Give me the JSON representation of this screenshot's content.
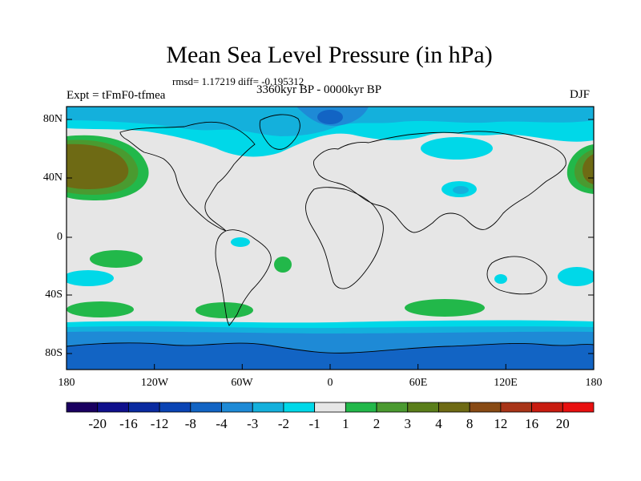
{
  "title": "Mean Sea Level Pressure (in hPa)",
  "stats_line": "rmsd= 1.17219  diff= -0.195312",
  "experiment": "Expt = tFmF0-tfmea",
  "period": "3360kyr BP - 0000kyr BP",
  "season": "DJF",
  "lat_ticks": [
    "80N",
    "40N",
    "0",
    "40S",
    "80S"
  ],
  "lon_ticks": [
    "180",
    "120W",
    "60W",
    "0",
    "60E",
    "120E",
    "180"
  ],
  "colorbar": {
    "labels": [
      "-20",
      "-16",
      "-12",
      "-8",
      "-4",
      "-3",
      "-2",
      "-1",
      "1",
      "2",
      "3",
      "4",
      "8",
      "12",
      "16",
      "20"
    ],
    "colors": [
      "#1a0060",
      "#10108c",
      "#0a2aa0",
      "#0a44b4",
      "#1264c4",
      "#1e8ad6",
      "#14b0dc",
      "#00d8e8",
      "#e6e6e6",
      "#22b84a",
      "#4a9a30",
      "#5a7e1a",
      "#6e6a14",
      "#884a14",
      "#a83418",
      "#c81c10",
      "#e81010"
    ]
  }
}
